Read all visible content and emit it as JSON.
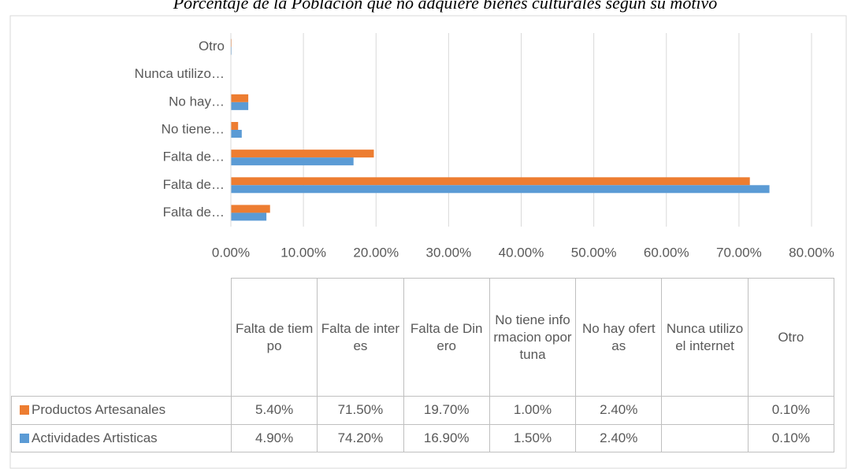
{
  "chart_data": {
    "type": "bar",
    "orientation": "horizontal",
    "title": "Porcentaje de la Poblacion que no adquiere bienes culturales segun su motivo",
    "categories": [
      "Falta de tiempo",
      "Falta de interes",
      "Falta de Dinero",
      "No tiene informacion oportuna",
      "No hay ofertas",
      "Nunca utilizo el internet",
      "Otro"
    ],
    "category_labels": [
      "Falta de…",
      "Falta de…",
      "Falta de…",
      "No tiene…",
      "No hay…",
      "Nunca utilizo…",
      "Otro"
    ],
    "series": [
      {
        "name": "Productos Artesanales",
        "color": "#ED7D31",
        "values": [
          5.4,
          71.5,
          19.7,
          1.0,
          2.4,
          null,
          0.1
        ],
        "value_labels": [
          "5.40%",
          "71.50%",
          "19.70%",
          "1.00%",
          "2.40%",
          null,
          "0.10%"
        ]
      },
      {
        "name": "Actividades Artisticas",
        "color": "#5B9BD5",
        "values": [
          4.9,
          74.2,
          16.9,
          1.5,
          2.4,
          null,
          0.1
        ],
        "value_labels": [
          "4.90%",
          "74.20%",
          "16.90%",
          "1.50%",
          "2.40%",
          null,
          "0.10%"
        ]
      }
    ],
    "xlim": [
      0,
      80
    ],
    "xticks": [
      {
        "value": 0,
        "label": "0.00%"
      },
      {
        "value": 10,
        "label": "10.00%"
      },
      {
        "value": 20,
        "label": "20.00%"
      },
      {
        "value": 30,
        "label": "30.00%"
      },
      {
        "value": 40,
        "label": "40.00%"
      },
      {
        "value": 50,
        "label": "50.00%"
      },
      {
        "value": 60,
        "label": "60.00%"
      },
      {
        "value": 70,
        "label": "70.00%"
      },
      {
        "value": 80,
        "label": "80.00%"
      }
    ],
    "grid": true,
    "data_table": true
  }
}
